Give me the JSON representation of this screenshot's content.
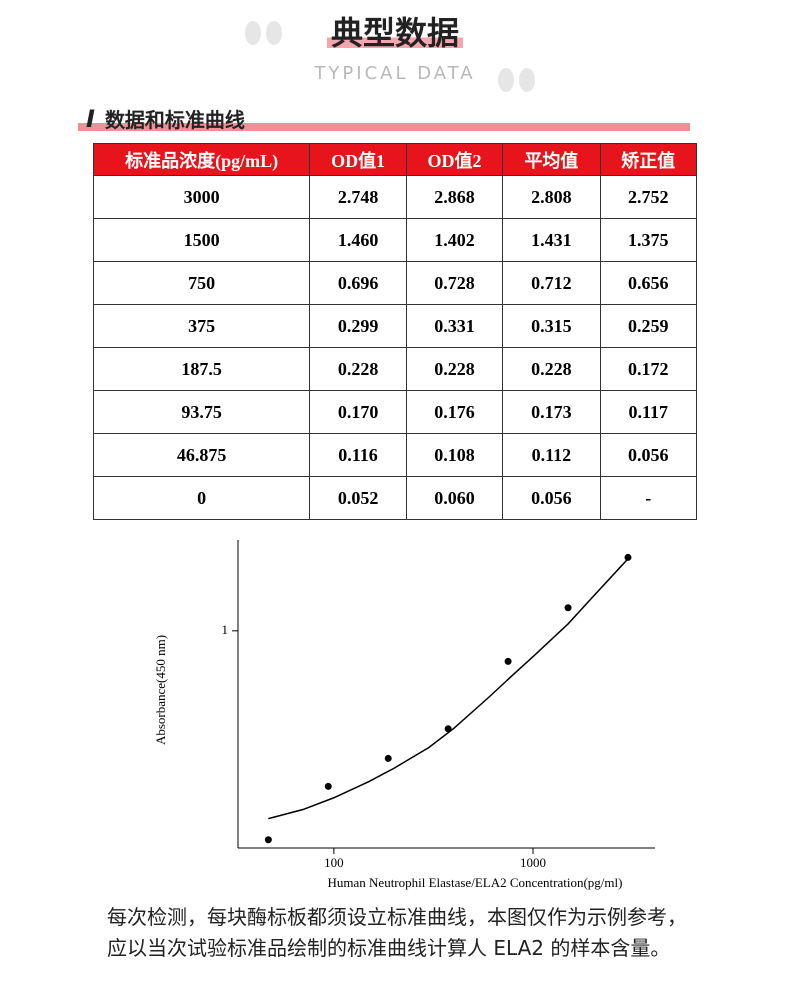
{
  "header": {
    "title": "典型数据",
    "subtitle": "TYPICAL DATA"
  },
  "section": {
    "number": "I",
    "title": "数据和标准曲线"
  },
  "table": {
    "columns": [
      "标准品浓度(pg/mL)",
      "OD值1",
      "OD值2",
      "平均值",
      "矫正值"
    ],
    "rows": [
      [
        "3000",
        "2.748",
        "2.868",
        "2.808",
        "2.752"
      ],
      [
        "1500",
        "1.460",
        "1.402",
        "1.431",
        "1.375"
      ],
      [
        "750",
        "0.696",
        "0.728",
        "0.712",
        "0.656"
      ],
      [
        "375",
        "0.299",
        "0.331",
        "0.315",
        "0.259"
      ],
      [
        "187.5",
        "0.228",
        "0.228",
        "0.228",
        "0.172"
      ],
      [
        "93.75",
        "0.170",
        "0.176",
        "0.173",
        "0.117"
      ],
      [
        "46.875",
        "0.116",
        "0.108",
        "0.112",
        "0.056"
      ],
      [
        "0",
        "0.052",
        "0.060",
        "0.056",
        "-"
      ]
    ]
  },
  "chart_data": {
    "type": "scatter",
    "x_label": "Human Neutrophil Elastase/ELA2 Concentration(pg/ml)",
    "y_label": "Absorbance(450 nm)",
    "x": [
      46.875,
      93.75,
      187.5,
      375,
      750,
      1500,
      3000
    ],
    "series": [
      {
        "color": "#000000",
        "values": [
          0.056,
          0.117,
          0.172,
          0.259,
          0.656,
          1.375,
          2.752
        ]
      }
    ],
    "curve": {
      "x": [
        46.875,
        70,
        100,
        150,
        200,
        300,
        400,
        600,
        800,
        1000,
        1500,
        2000,
        3000
      ],
      "y": [
        0.075,
        0.085,
        0.1,
        0.125,
        0.15,
        0.2,
        0.26,
        0.4,
        0.55,
        0.7,
        1.1,
        1.6,
        2.7
      ]
    },
    "xlim": [
      33,
      4100
    ],
    "ylim": [
      0.05,
      3.5
    ],
    "xticks": [
      100,
      1000
    ],
    "yticks": [
      1
    ],
    "log_x": true,
    "log_y": true
  },
  "footer": {
    "text": "每次检测，每块酶标板都须设立标准曲线，本图仅作为示例参考，应以当次试验标准品绘制的标准曲线计算人 ELA2 的样本含量。"
  }
}
